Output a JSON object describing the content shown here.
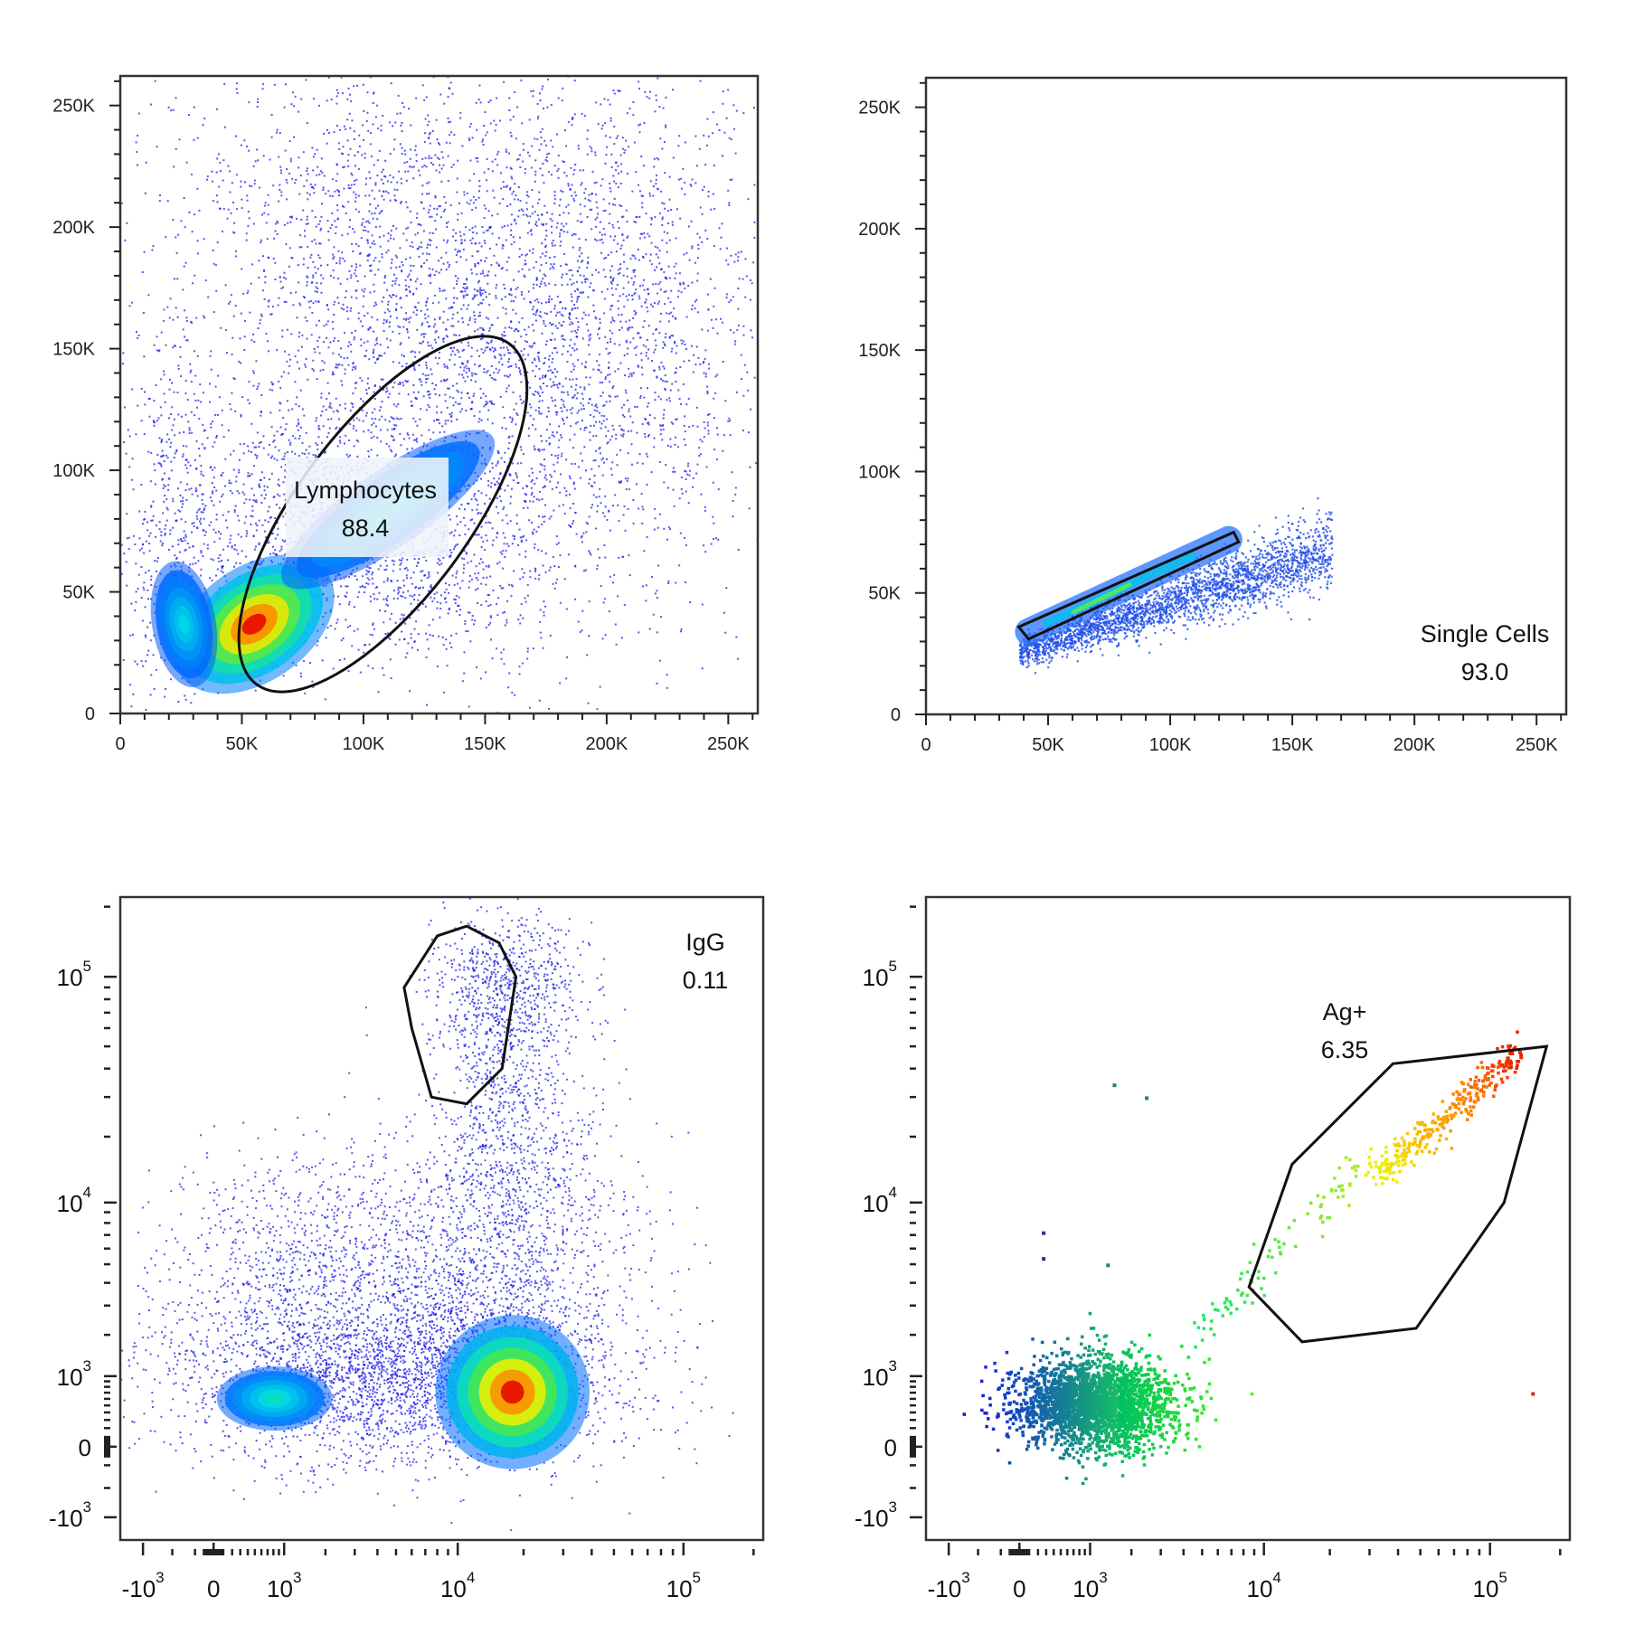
{
  "chart_data": [
    {
      "type": "scatter",
      "xlim": [
        0,
        262144
      ],
      "ylim": [
        0,
        262144
      ],
      "x_ticks": [
        {
          "value": 0,
          "label": "0"
        },
        {
          "value": 50000,
          "label": "50K"
        },
        {
          "value": 100000,
          "label": "100K"
        },
        {
          "value": 150000,
          "label": "150K"
        },
        {
          "value": 200000,
          "label": "200K"
        },
        {
          "value": 250000,
          "label": "250K"
        }
      ],
      "y_ticks": [
        {
          "value": 0,
          "label": "0"
        },
        {
          "value": 50000,
          "label": "50K"
        },
        {
          "value": 100000,
          "label": "100K"
        },
        {
          "value": 150000,
          "label": "150K"
        },
        {
          "value": 200000,
          "label": "200K"
        },
        {
          "value": 250000,
          "label": "250K"
        }
      ],
      "gate": {
        "shape": "ellipse",
        "name": "Lymphocytes",
        "value": "88.4",
        "center": [
          98000,
          72000
        ],
        "points": [
          [
            56000,
            12000
          ],
          [
            160000,
            152000
          ]
        ]
      }
    },
    {
      "type": "scatter",
      "xlim": [
        0,
        262144
      ],
      "ylim": [
        0,
        262144
      ],
      "x_ticks": [
        {
          "value": 0,
          "label": "0"
        },
        {
          "value": 50000,
          "label": "50K"
        },
        {
          "value": 100000,
          "label": "100K"
        },
        {
          "value": 150000,
          "label": "150K"
        },
        {
          "value": 200000,
          "label": "200K"
        },
        {
          "value": 250000,
          "label": "250K"
        }
      ],
      "y_ticks": [
        {
          "value": 0,
          "label": "0"
        },
        {
          "value": 50000,
          "label": "50K"
        },
        {
          "value": 100000,
          "label": "100K"
        },
        {
          "value": 150000,
          "label": "150K"
        },
        {
          "value": 200000,
          "label": "200K"
        },
        {
          "value": 250000,
          "label": "250K"
        }
      ],
      "gate": {
        "shape": "polygon",
        "name": "Single Cells",
        "value": "93.0",
        "points": [
          [
            38000,
            36000
          ],
          [
            126000,
            75000
          ],
          [
            128000,
            71000
          ],
          [
            42000,
            31000
          ]
        ]
      }
    },
    {
      "type": "scatter",
      "axis_scale": "biexponential",
      "x_ticks": [
        {
          "value": -1000,
          "base": "-10",
          "exp": "3"
        },
        {
          "value": 0,
          "base": "0",
          "exp": ""
        },
        {
          "value": 1000,
          "base": "10",
          "exp": "3"
        },
        {
          "value": 10000,
          "base": "10",
          "exp": "4"
        },
        {
          "value": 100000,
          "base": "10",
          "exp": "5"
        }
      ],
      "y_ticks": [
        {
          "value": -1000,
          "base": "-10",
          "exp": "3"
        },
        {
          "value": 0,
          "base": "0",
          "exp": ""
        },
        {
          "value": 1000,
          "base": "10",
          "exp": "3"
        },
        {
          "value": 10000,
          "base": "10",
          "exp": "4"
        },
        {
          "value": 100000,
          "base": "10",
          "exp": "5"
        }
      ],
      "gate": {
        "shape": "polygon",
        "name": "IgG",
        "value": "0.11",
        "points": [
          [
            8000,
            150000
          ],
          [
            11000,
            165000
          ],
          [
            15500,
            140000
          ],
          [
            18500,
            100000
          ],
          [
            16000,
            40000
          ],
          [
            11000,
            28000
          ],
          [
            7500,
            30000
          ],
          [
            6000,
            60000
          ],
          [
            5500,
            90000
          ]
        ]
      }
    },
    {
      "type": "scatter",
      "axis_scale": "biexponential",
      "x_ticks": [
        {
          "value": -1000,
          "base": "-10",
          "exp": "3"
        },
        {
          "value": 0,
          "base": "0",
          "exp": ""
        },
        {
          "value": 1000,
          "base": "10",
          "exp": "3"
        },
        {
          "value": 10000,
          "base": "10",
          "exp": "4"
        },
        {
          "value": 100000,
          "base": "10",
          "exp": "5"
        }
      ],
      "y_ticks": [
        {
          "value": -1000,
          "base": "-10",
          "exp": "3"
        },
        {
          "value": 0,
          "base": "0",
          "exp": ""
        },
        {
          "value": 1000,
          "base": "10",
          "exp": "3"
        },
        {
          "value": 10000,
          "base": "10",
          "exp": "4"
        },
        {
          "value": 100000,
          "base": "10",
          "exp": "5"
        }
      ],
      "gate": {
        "shape": "polygon",
        "name": "Ag+",
        "value": "6.35",
        "points": [
          [
            13500,
            15000
          ],
          [
            38000,
            42000
          ],
          [
            175000,
            50000
          ],
          [
            115000,
            10000
          ],
          [
            48000,
            2200
          ],
          [
            15000,
            1800
          ],
          [
            8500,
            3800
          ]
        ]
      }
    }
  ]
}
